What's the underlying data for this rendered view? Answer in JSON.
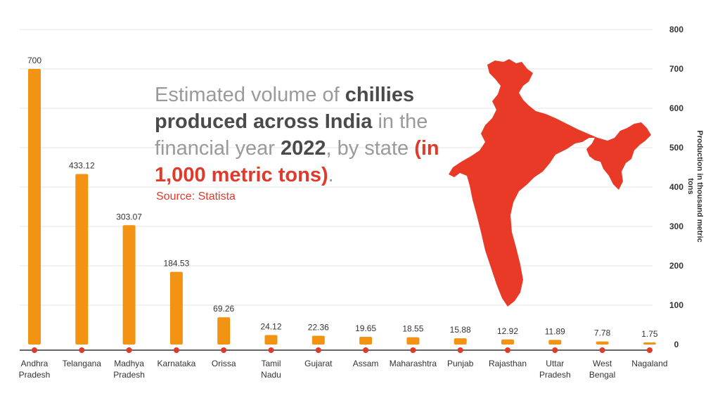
{
  "title": {
    "part1": "Estimated volume of ",
    "part2": "chillies produced across India",
    "part3": " in the financial year ",
    "part4": "2022",
    "part5": ", by state ",
    "part6": "(in 1,000 metric tons)",
    "part7": "."
  },
  "source": "Source: Statista",
  "colors": {
    "bar": "#f39314",
    "dot": "#e03a2a",
    "map": "#e83a27",
    "grid": "#e6e6e6",
    "axis": "#333333"
  },
  "chart_data": {
    "type": "bar",
    "title": "Estimated volume of chillies produced across India in the financial year 2022, by state (in 1,000 metric tons).",
    "categories": [
      [
        "Andhra",
        "Pradesh"
      ],
      [
        "Telangana"
      ],
      [
        "Madhya",
        "Pradesh"
      ],
      [
        "Karnataka"
      ],
      [
        "Orissa"
      ],
      [
        "Tamil",
        "Nadu"
      ],
      [
        "Gujarat"
      ],
      [
        "Assam"
      ],
      [
        "Maharashtra"
      ],
      [
        "Punjab"
      ],
      [
        "Rajasthan"
      ],
      [
        "Uttar",
        "Pradesh"
      ],
      [
        "West",
        "Bengal"
      ],
      [
        "Nagaland"
      ]
    ],
    "values": [
      700,
      433.12,
      303.07,
      184.53,
      69.26,
      24.12,
      22.36,
      19.65,
      18.55,
      15.88,
      12.92,
      11.89,
      7.78,
      1.75
    ],
    "value_labels": [
      "700",
      "433.12",
      "303.07",
      "184.53",
      "69.26",
      "24.12",
      "22.36",
      "19.65",
      "18.55",
      "15.88",
      "12.92",
      "11.89",
      "7.78",
      "1.75"
    ],
    "ylabel": "Production in thousand metric tons",
    "ylim": [
      0,
      800
    ],
    "yticks": [
      "0",
      "100",
      "200",
      "300",
      "400",
      "500",
      "600",
      "700",
      "800"
    ],
    "y_axis_side": "right",
    "grid": true,
    "legend": "none"
  }
}
